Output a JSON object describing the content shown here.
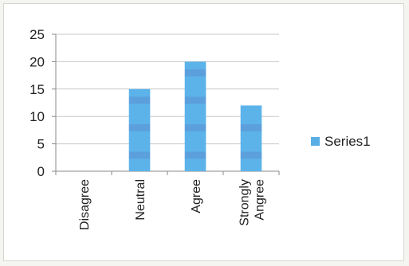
{
  "chart_data": {
    "type": "bar",
    "categories": [
      [
        "Disagree"
      ],
      [
        "Neutral"
      ],
      [
        "Agree"
      ],
      [
        "Strongly",
        "Angree"
      ]
    ],
    "series": [
      {
        "name": "Series1",
        "values": [
          0,
          15,
          20,
          12
        ],
        "color": "#5aaee6"
      }
    ],
    "ylim": [
      0,
      25
    ],
    "yticks": [
      "0",
      "5",
      "10",
      "15",
      "20",
      "25"
    ],
    "grid": true,
    "legend": "right"
  }
}
